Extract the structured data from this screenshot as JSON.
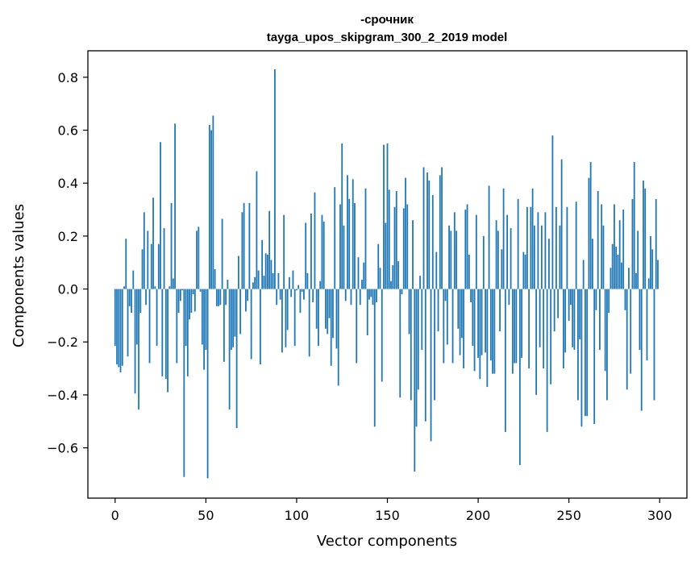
{
  "chart_data": {
    "type": "bar",
    "title_line1": "-срочник",
    "title_line2": "tayga_upos_skipgram_300_2_2019 model",
    "xlabel": "Vector components",
    "ylabel": "Components values",
    "xlim": [
      -15,
      315
    ],
    "ylim": [
      -0.79,
      0.9
    ],
    "x_ticks": [
      0,
      50,
      100,
      150,
      200,
      250,
      300
    ],
    "x_tick_labels": [
      "0",
      "50",
      "100",
      "150",
      "200",
      "250",
      "300"
    ],
    "y_ticks": [
      -0.6,
      -0.4,
      -0.2,
      0.0,
      0.2,
      0.4,
      0.6,
      0.8
    ],
    "y_tick_labels": [
      "−0.6",
      "−0.4",
      "−0.2",
      "0.0",
      "0.2",
      "0.4",
      "0.6",
      "0.8"
    ],
    "bar_color": "#1f77b4",
    "grid": false,
    "values": [
      -0.215,
      -0.285,
      -0.295,
      -0.315,
      -0.29,
      0.01,
      0.19,
      -0.255,
      -0.065,
      -0.09,
      0.07,
      -0.395,
      -0.21,
      -0.455,
      -0.09,
      0.15,
      0.29,
      -0.06,
      0.22,
      -0.28,
      0.17,
      0.345,
      0.01,
      -0.215,
      0.17,
      0.555,
      -0.33,
      0.23,
      -0.34,
      -0.39,
      0.01,
      0.325,
      0.04,
      0.625,
      -0.28,
      -0.09,
      -0.045,
      -0.005,
      -0.71,
      -0.215,
      -0.33,
      -0.115,
      -0.09,
      -0.02,
      -0.085,
      0.22,
      0.235,
      -0.01,
      -0.21,
      -0.305,
      -0.23,
      -0.715,
      0.62,
      0.6,
      0.655,
      0.075,
      -0.065,
      -0.065,
      -0.06,
      0.265,
      -0.275,
      -0.06,
      0.035,
      -0.455,
      -0.23,
      -0.22,
      -0.18,
      -0.525,
      0.125,
      -0.17,
      0.29,
      0.325,
      -0.085,
      -0.045,
      0.325,
      -0.265,
      0.025,
      0.045,
      0.445,
      0.07,
      -0.285,
      0.185,
      0.05,
      0.135,
      0.13,
      0.295,
      0.11,
      0.06,
      0.83,
      -0.06,
      0.06,
      -0.04,
      -0.24,
      0.28,
      -0.22,
      -0.155,
      0.045,
      -0.03,
      0.07,
      -0.215,
      -0.005,
      0.015,
      -0.09,
      -0.01,
      -0.04,
      0.25,
      0.06,
      -0.255,
      0.285,
      -0.05,
      0.365,
      -0.15,
      -0.215,
      0.03,
      0.28,
      0.255,
      -0.15,
      -0.17,
      -0.11,
      -0.29,
      -0.185,
      0.385,
      -0.225,
      -0.365,
      0.32,
      0.55,
      0.24,
      -0.045,
      0.43,
      0.34,
      -0.06,
      0.415,
      0.325,
      -0.28,
      0.12,
      -0.06,
      0.035,
      0.1,
      0.38,
      -0.175,
      -0.04,
      -0.03,
      -0.06,
      -0.52,
      -0.05,
      0.17,
      0.08,
      -0.35,
      0.545,
      0.25,
      0.55,
      0.375,
      0.03,
      0.09,
      0.31,
      0.37,
      0.105,
      -0.41,
      -0.02,
      0.305,
      0.42,
      0.32,
      -0.17,
      -0.42,
      0.26,
      -0.69,
      -0.52,
      -0.38,
      0.05,
      -0.23,
      0.46,
      -0.5,
      0.44,
      0.41,
      -0.575,
      0.355,
      -0.42,
      0.14,
      -0.16,
      0.43,
      0.46,
      -0.28,
      -0.045,
      -0.21,
      0.24,
      0.22,
      -0.28,
      0.29,
      0.22,
      -0.15,
      -0.25,
      -0.185,
      -0.3,
      0.3,
      0.32,
      0.13,
      -0.05,
      -0.215,
      -0.31,
      0.28,
      -0.26,
      -0.34,
      -0.25,
      0.2,
      -0.24,
      -0.37,
      0.39,
      -0.27,
      -0.32,
      -0.32,
      0.26,
      0.22,
      -0.16,
      0.15,
      0.38,
      -0.54,
      0.28,
      -0.06,
      0.23,
      -0.32,
      -0.28,
      -0.28,
      0.34,
      -0.665,
      -0.26,
      0.14,
      0.13,
      0.31,
      -0.3,
      0.31,
      0.38,
      0.24,
      -0.4,
      0.29,
      -0.22,
      0.24,
      -0.3,
      0.29,
      -0.54,
      0.19,
      -0.36,
      0.58,
      -0.16,
      0.31,
      -0.11,
      0.24,
      0.49,
      -0.3,
      -0.24,
      0.31,
      -0.12,
      -0.06,
      -0.22,
      -0.23,
      0.33,
      -0.42,
      -0.19,
      -0.52,
      0.11,
      -0.48,
      -0.48,
      0.42,
      0.48,
      0.19,
      -0.51,
      -0.08,
      0.37,
      -0.23,
      0.32,
      0.24,
      -0.31,
      -0.42,
      -0.09,
      0.08,
      0.17,
      0.32,
      0.16,
      0.13,
      0.26,
      0.1,
      0.3,
      -0.08,
      -0.38,
      0.08,
      -0.32,
      0.34,
      0.48,
      0.06,
      0.22,
      -0.23,
      -0.46,
      0.41,
      0.38,
      -0.27,
      0.04,
      0.2,
      0.15,
      -0.42,
      0.34,
      0.11
    ]
  }
}
